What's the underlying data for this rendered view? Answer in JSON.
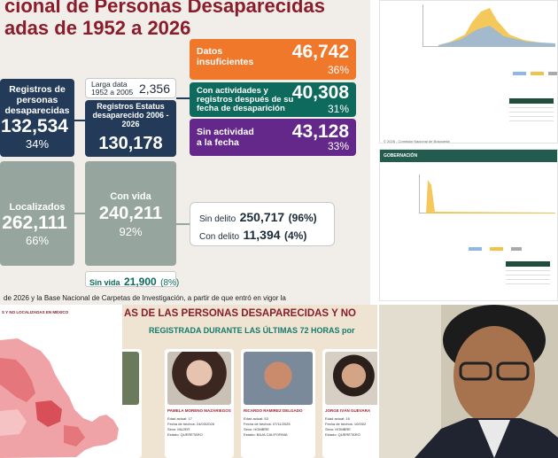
{
  "infographic": {
    "title_line1": "cional de Personas Desaparecidas",
    "title_line2": "adas de 1952 a 2026",
    "registros": {
      "label": "Registros de personas desaparecidas",
      "value": "132,534",
      "pct": "34%"
    },
    "larga_data": {
      "label": "Larga data 1952 a 2005",
      "value": "2,356"
    },
    "estatus": {
      "label": "Registros Estatus desaparecido 2006 - 2026",
      "value": "130,178"
    },
    "datos_insuficientes": {
      "label": "Datos insuficientes",
      "value": "46,742",
      "pct": "36%"
    },
    "con_actividades": {
      "label": "Con actividades y registros después de su fecha de desaparición",
      "value": "40,308",
      "pct": "31%"
    },
    "sin_actividad": {
      "label": "Sin actividad a la fecha",
      "value": "43,128",
      "pct": "33%"
    },
    "localizados": {
      "label": "Localizados",
      "value": "262,111",
      "pct": "66%"
    },
    "con_vida": {
      "label": "Con vida",
      "value": "240,211",
      "pct": "92%"
    },
    "sin_delito": {
      "label": "Sin delito",
      "value": "250,717",
      "pct": "(96%)"
    },
    "con_delito": {
      "label": "Con delito",
      "value": "11,394",
      "pct": "(4%)"
    },
    "sin_vida": {
      "label": "Sin vida",
      "value": "21,900",
      "pct": "(8%)"
    },
    "footer": "de 2026 y la Base Nacional de Carpetas de Investigación, a partir de que entró en vigor la"
  },
  "dashboard_top": {
    "footer": "© 2026 - Comisión Nacional de Búsqueda"
  },
  "dashboard_bottom": {
    "header": "GOBERNACIÓN"
  },
  "map_panel": {
    "caption": "S Y NO LOCALIZADAS EN MÉXICO"
  },
  "poster": {
    "heading": "AS DE LAS PERSONAS DESAPARECIDAS Y NO",
    "subheading": "REGISTRADA DURANTE LAS ÚLTIMAS 72 HORAS por",
    "people": [
      {
        "name": "PAMELA MORENO MAZARIEGOS",
        "age": "Edad actual: 17",
        "date": "Fecha de hechos: 24/03/2026",
        "sex": "Sexo: MUJER",
        "state": "Estado: QUERETARO"
      },
      {
        "name": "RICARDO RAMIREZ DELGADO",
        "age": "Edad actual: 53",
        "date": "Fecha de hechos: 07/11/2025",
        "sex": "Sexo: HOMBRE",
        "state": "Estado: BAJA CALIFORNIA"
      },
      {
        "name": "JORGE IVÁN GUEVARA",
        "age": "Edad actual: 16",
        "date": "Fecha de hechos: 10/03/2",
        "sex": "Sexo: HOMBRE",
        "state": "Estado: QUERETARO"
      }
    ]
  },
  "colors": {
    "title": "#8a1c2b",
    "navy": "#233a59",
    "gray": "#97a59f",
    "orange": "#f0782b",
    "teal": "#0e6a5d",
    "purple": "#64278a"
  }
}
